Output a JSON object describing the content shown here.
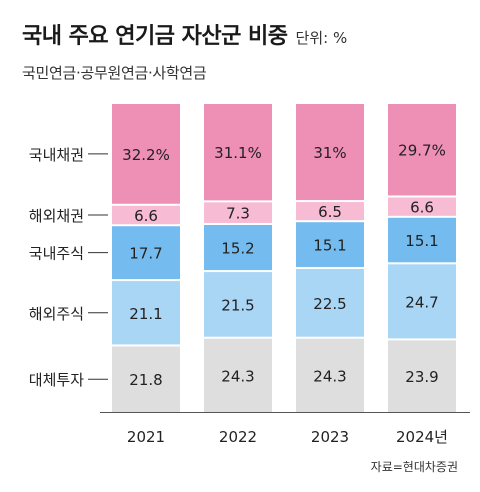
{
  "header": {
    "title": "국내 주요 연기금 자산군 비중",
    "unit": "단위: %",
    "subtitle": "국민연금·공무원연금·사학연금"
  },
  "source": "자료=현대차증권",
  "colors": {
    "국내채권": "#ee8fb5",
    "해외채권": "#f8bbd4",
    "국내주식": "#74bcef",
    "해외주식": "#aad6f5",
    "대체투자": "#dedede"
  },
  "chart_data": {
    "type": "bar",
    "stacked": true,
    "categories": [
      "2021",
      "2022",
      "2023",
      "2024년"
    ],
    "series": [
      {
        "name": "대체투자",
        "values": [
          21.8,
          24.3,
          24.3,
          23.9
        ],
        "labels": [
          "21.8",
          "24.3",
          "24.3",
          "23.9"
        ]
      },
      {
        "name": "해외주식",
        "values": [
          21.1,
          21.5,
          22.5,
          24.7
        ],
        "labels": [
          "21.1",
          "21.5",
          "22.5",
          "24.7"
        ]
      },
      {
        "name": "국내주식",
        "values": [
          17.7,
          15.2,
          15.1,
          15.1
        ],
        "labels": [
          "17.7",
          "15.2",
          "15.1",
          "15.1"
        ]
      },
      {
        "name": "해외채권",
        "values": [
          6.6,
          7.3,
          6.5,
          6.6
        ],
        "labels": [
          "6.6",
          "7.3",
          "6.5",
          "6.6"
        ]
      },
      {
        "name": "국내채권",
        "values": [
          32.2,
          31.1,
          31,
          29.7
        ],
        "labels": [
          "32.2%",
          "31.1%",
          "31%",
          "29.7%"
        ]
      }
    ],
    "ylim": [
      0,
      100
    ],
    "legend": "left"
  }
}
